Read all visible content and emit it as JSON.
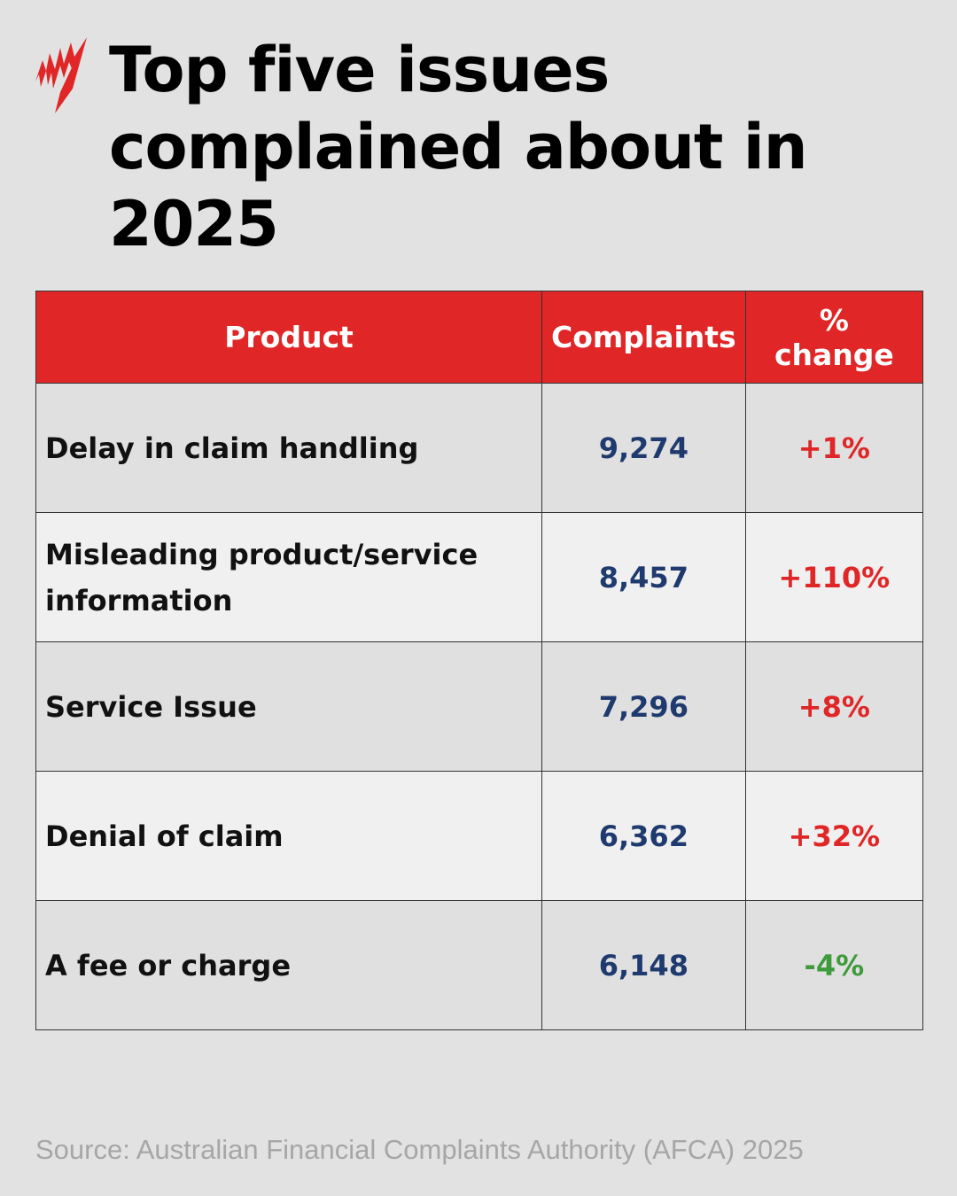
{
  "title": "Top five issues complained about in 2025",
  "colors": {
    "header_bg": "#e02626",
    "number": "#1f3a6e",
    "increase": "#e02626",
    "decrease": "#3e9a3a",
    "logo": "#e02626"
  },
  "chart_data": {
    "type": "table",
    "columns": [
      "Product",
      "Complaints",
      "% change"
    ],
    "rows": [
      {
        "product": "Delay in claim handling",
        "complaints": "9,274",
        "change": "+1%",
        "direction": "up"
      },
      {
        "product": "Misleading product/service information",
        "complaints": "8,457",
        "change": "+110%",
        "direction": "up"
      },
      {
        "product": "Service Issue",
        "complaints": "7,296",
        "change": "+8%",
        "direction": "up"
      },
      {
        "product": "Denial of claim",
        "complaints": "6,362",
        "change": "+32%",
        "direction": "up"
      },
      {
        "product": "A fee or charge",
        "complaints": "6,148",
        "change": "-4%",
        "direction": "down"
      }
    ]
  },
  "source": "Source: Australian Financial Complaints Authority (AFCA) 2025"
}
